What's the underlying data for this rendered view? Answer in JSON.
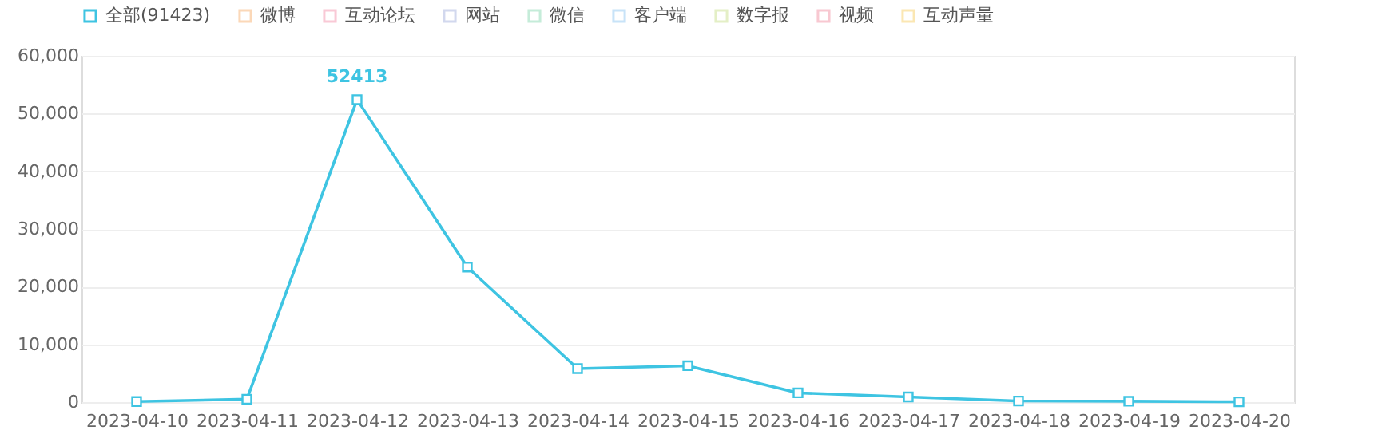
{
  "chart_data": {
    "type": "line",
    "categories": [
      "2023-04-10",
      "2023-04-11",
      "2023-04-12",
      "2023-04-13",
      "2023-04-14",
      "2023-04-15",
      "2023-04-16",
      "2023-04-17",
      "2023-04-18",
      "2023-04-19",
      "2023-04-20"
    ],
    "series": [
      {
        "name": "全部(91423)",
        "color": "#3ec4e2",
        "values": [
          100,
          500,
          52413,
          23400,
          5800,
          6300,
          1600,
          900,
          200,
          150,
          60
        ]
      },
      {
        "name": "微博",
        "color": "#fbd8b8",
        "values": [
          null,
          null,
          null,
          null,
          null,
          null,
          null,
          null,
          null,
          null,
          null
        ]
      },
      {
        "name": "互动论坛",
        "color": "#f9c9d6",
        "values": [
          null,
          null,
          null,
          null,
          null,
          null,
          null,
          null,
          null,
          null,
          null
        ]
      },
      {
        "name": "网站",
        "color": "#d2d8ee",
        "values": [
          null,
          null,
          null,
          null,
          null,
          null,
          null,
          null,
          null,
          null,
          null
        ]
      },
      {
        "name": "微信",
        "color": "#c5ecd9",
        "values": [
          null,
          null,
          null,
          null,
          null,
          null,
          null,
          null,
          null,
          null,
          null
        ]
      },
      {
        "name": "客户端",
        "color": "#c8e3f8",
        "values": [
          null,
          null,
          null,
          null,
          null,
          null,
          null,
          null,
          null,
          null,
          null
        ]
      },
      {
        "name": "数字报",
        "color": "#e4efc6",
        "values": [
          null,
          null,
          null,
          null,
          null,
          null,
          null,
          null,
          null,
          null,
          null
        ]
      },
      {
        "name": "视频",
        "color": "#f8c8d1",
        "values": [
          null,
          null,
          null,
          null,
          null,
          null,
          null,
          null,
          null,
          null,
          null
        ]
      },
      {
        "name": "互动声量",
        "color": "#fbe7b3",
        "values": [
          null,
          null,
          null,
          null,
          null,
          null,
          null,
          null,
          null,
          null,
          null
        ]
      }
    ],
    "ylim": [
      0,
      60000
    ],
    "yticks": [
      {
        "value": 0,
        "label": "0"
      },
      {
        "value": 10000,
        "label": "10,000"
      },
      {
        "value": 20000,
        "label": "20,000"
      },
      {
        "value": 30000,
        "label": "30,000"
      },
      {
        "value": 40000,
        "label": "40,000"
      },
      {
        "value": 50000,
        "label": "50,000"
      },
      {
        "value": 60000,
        "label": "60,000"
      }
    ],
    "annotations": [
      {
        "text": "52413",
        "x": "2023-04-12",
        "y": 52413
      }
    ],
    "grid": "y",
    "legend": "top left",
    "marker": "square",
    "line_style": "solid"
  }
}
